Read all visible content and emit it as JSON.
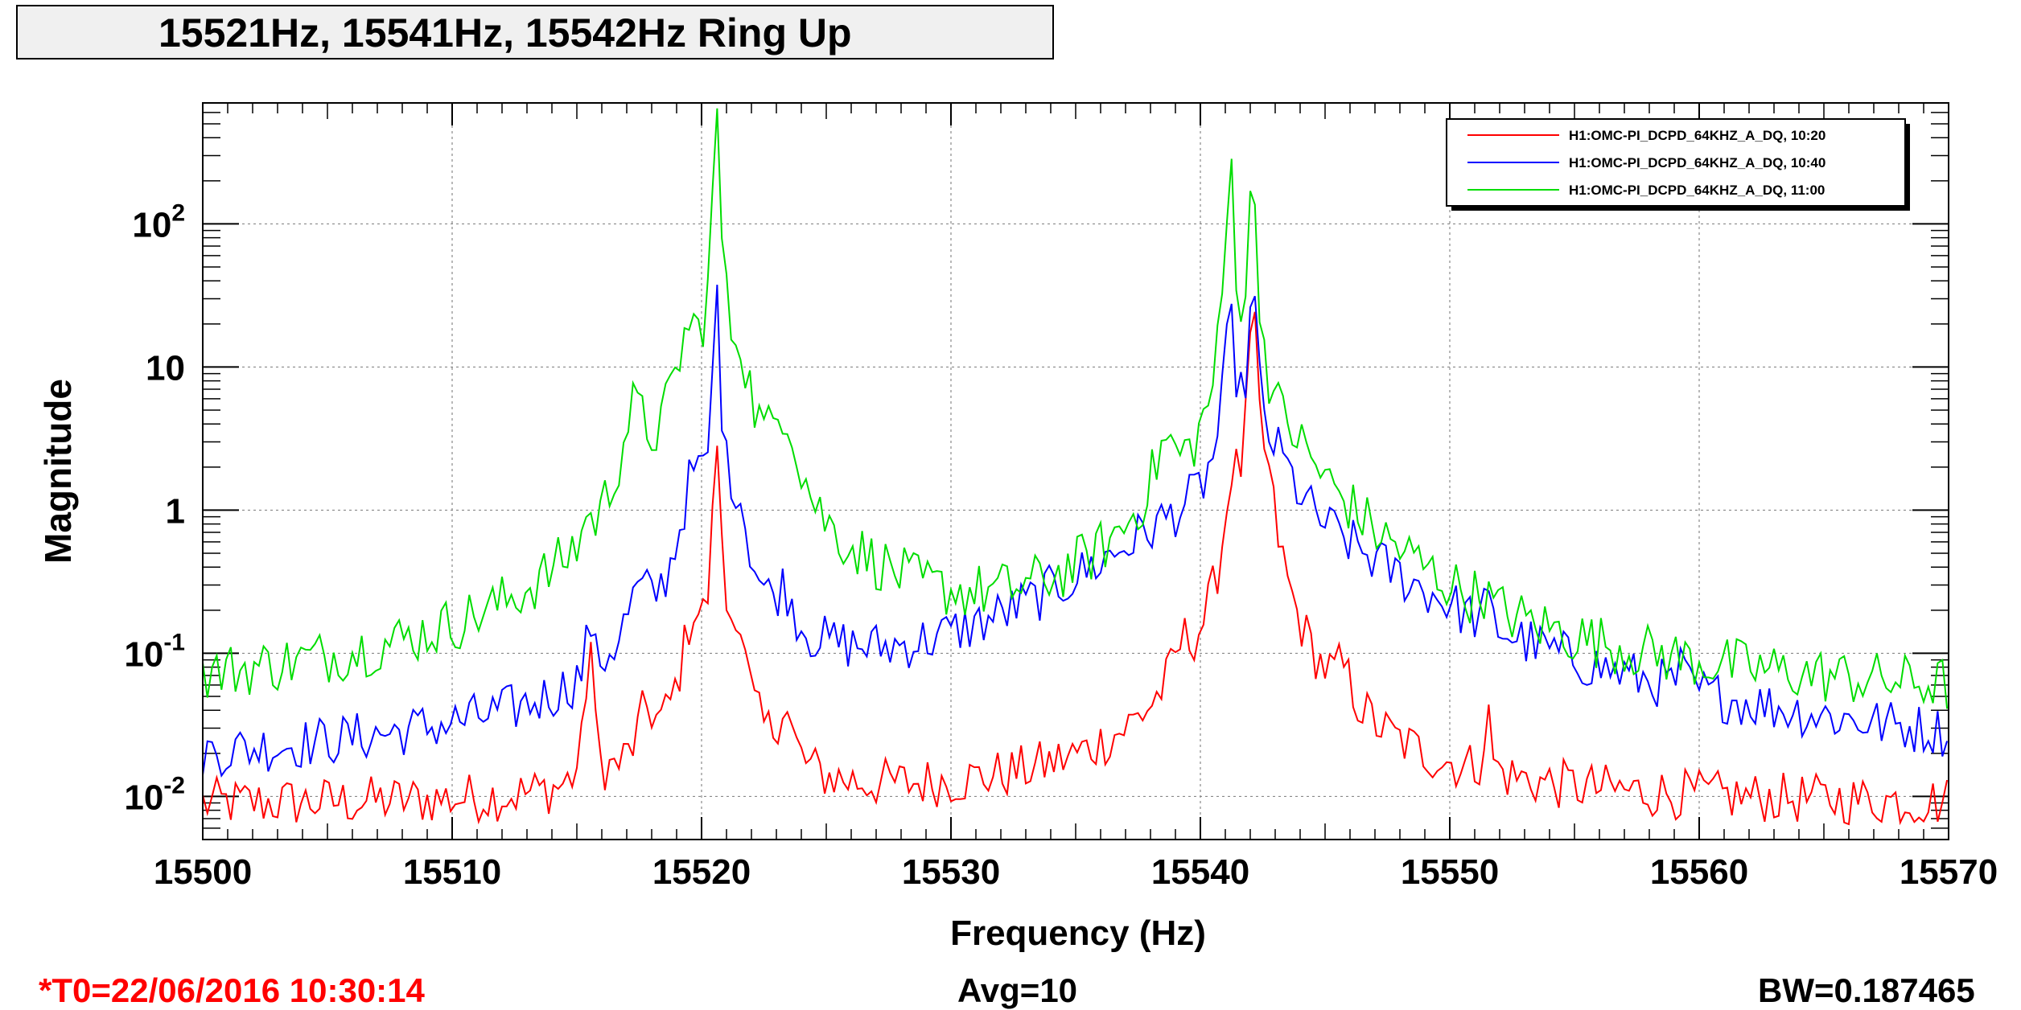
{
  "title": "15521Hz, 15541Hz, 15542Hz Ring Up",
  "footer": {
    "t0": "*T0=22/06/2016 10:30:14",
    "avg": "Avg=10",
    "bw": "BW=0.187465",
    "t0_color": "#ff0000"
  },
  "chart_data": {
    "type": "line",
    "title": "15521Hz, 15541Hz, 15542Hz Ring Up",
    "xlabel": "Frequency (Hz)",
    "ylabel": "Magnitude",
    "xlim": [
      15500,
      15570
    ],
    "ylim": [
      0.005,
      700
    ],
    "yscale": "log",
    "grid": true,
    "legend_position": "top-right",
    "x_ticks": [
      "15500",
      "15510",
      "15520",
      "15530",
      "15540",
      "15550",
      "15560",
      "15570"
    ],
    "y_ticks": [
      {
        "base": "10",
        "exp": "-2"
      },
      {
        "base": "10",
        "exp": "-1"
      },
      {
        "base": "1",
        "exp": ""
      },
      {
        "base": "10",
        "exp": ""
      },
      {
        "base": "10",
        "exp": "2"
      }
    ],
    "series": [
      {
        "name": "H1:OMC-PI_DCPD_64KHZ_A_DQ, 10:20",
        "color": "#ff0000",
        "base": 0.0085,
        "noise": 0.18,
        "peaks": [
          [
            15515.5,
            0.17,
            0.08
          ],
          [
            15517.8,
            0.022,
            0.35
          ],
          [
            15519.7,
            0.16,
            0.4
          ],
          [
            15520.6,
            3.8,
            0.08
          ],
          [
            15521.4,
            0.16,
            0.25
          ],
          [
            15523.3,
            0.025,
            0.3
          ],
          [
            15539.3,
            0.045,
            0.35
          ],
          [
            15541.3,
            1.5,
            0.22
          ],
          [
            15542.1,
            24,
            0.12
          ],
          [
            15542.6,
            1.2,
            0.3
          ],
          [
            15545.7,
            0.03,
            0.35
          ],
          [
            15551.5,
            0.028,
            0.1
          ]
        ]
      },
      {
        "name": "H1:OMC-PI_DCPD_64KHZ_A_DQ, 10:40",
        "color": "#0000ff",
        "base": 0.0092,
        "noise": 0.18,
        "peaks": [
          [
            15515.5,
            0.15,
            0.08
          ],
          [
            15517.5,
            0.15,
            0.5
          ],
          [
            15519.7,
            1.5,
            0.45
          ],
          [
            15520.6,
            38,
            0.08
          ],
          [
            15521.4,
            1.0,
            0.35
          ],
          [
            15523.3,
            0.14,
            0.4
          ],
          [
            15525.5,
            0.014,
            1.6
          ],
          [
            15540.4,
            0.8,
            4.0
          ],
          [
            15541.2,
            19,
            0.18
          ],
          [
            15542.1,
            33,
            0.13
          ],
          [
            15543.0,
            1.3,
            0.8
          ],
          [
            15545.5,
            0.15,
            2.2
          ],
          [
            15548.5,
            0.04,
            2.5
          ],
          [
            15551.5,
            0.085,
            0.1
          ],
          [
            15559.3,
            0.022,
            0.15
          ]
        ]
      },
      {
        "name": "H1:OMC-PI_DCPD_64KHZ_A_DQ, 11:00",
        "color": "#00dd00",
        "base": 0.038,
        "noise": 0.2,
        "peaks": [
          [
            15515.4,
            0.35,
            0.08
          ],
          [
            15517.3,
            4.0,
            0.45
          ],
          [
            15519.5,
            15,
            0.5
          ],
          [
            15520.6,
            650,
            0.08
          ],
          [
            15521.5,
            10,
            0.35
          ],
          [
            15523.3,
            4.0,
            0.45
          ],
          [
            15526.5,
            0.065,
            2.0
          ],
          [
            15538.6,
            1.7,
            0.45
          ],
          [
            15540.3,
            0.7,
            2.5
          ],
          [
            15541.2,
            300,
            0.1
          ],
          [
            15542.1,
            240,
            0.1
          ],
          [
            15543.4,
            1.8,
            1.2
          ],
          [
            15545.3,
            0.3,
            1.8
          ],
          [
            15548.0,
            0.07,
            2.0
          ],
          [
            15551.3,
            0.055,
            0.15
          ]
        ]
      }
    ]
  }
}
